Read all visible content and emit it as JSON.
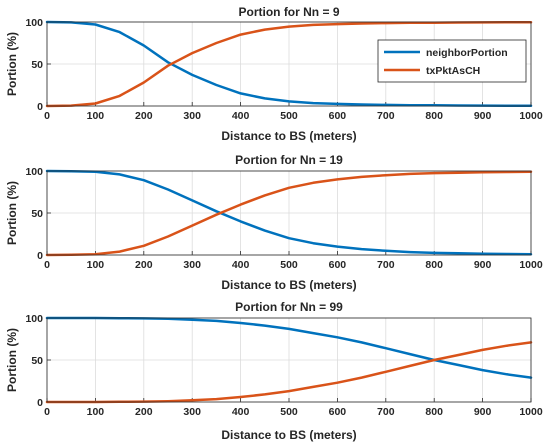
{
  "chart_data": [
    {
      "type": "line",
      "title": "Portion for Nn = 9",
      "xlabel": "Distance to BS (meters)",
      "ylabel": "Portion (%)",
      "xlim": [
        0,
        1000
      ],
      "ylim": [
        0,
        100
      ],
      "xticks": [
        "0",
        "100",
        "200",
        "300",
        "400",
        "500",
        "600",
        "700",
        "800",
        "900",
        "1000"
      ],
      "yticks": [
        "0",
        "50",
        "100"
      ],
      "grid": true,
      "legend": "top-right",
      "x": [
        0,
        50,
        100,
        150,
        200,
        250,
        300,
        350,
        400,
        450,
        500,
        550,
        600,
        650,
        700,
        750,
        800,
        850,
        900,
        950,
        1000
      ],
      "series": [
        {
          "name": "neighborPortion",
          "color": "#0072BD",
          "values": [
            100,
            99.5,
            97,
            88,
            72,
            52,
            37,
            25,
            15,
            9,
            5.5,
            3.5,
            2.5,
            1.8,
            1.3,
            1,
            0.8,
            0.6,
            0.5,
            0.4,
            0.3
          ]
        },
        {
          "name": "txPktAsCH",
          "color": "#D95319",
          "values": [
            0,
            0.5,
            3,
            12,
            28,
            48,
            63,
            75,
            85,
            91,
            94.5,
            96.5,
            97.5,
            98.2,
            98.7,
            99,
            99.2,
            99.4,
            99.5,
            99.6,
            99.7
          ]
        }
      ]
    },
    {
      "type": "line",
      "title": "Portion for Nn = 19",
      "xlabel": "Distance to BS (meters)",
      "ylabel": "Portion (%)",
      "xlim": [
        0,
        1000
      ],
      "ylim": [
        0,
        100
      ],
      "xticks": [
        "0",
        "100",
        "200",
        "300",
        "400",
        "500",
        "600",
        "700",
        "800",
        "900",
        "1000"
      ],
      "yticks": [
        "0",
        "50",
        "100"
      ],
      "grid": true,
      "x": [
        0,
        50,
        100,
        150,
        200,
        250,
        300,
        350,
        400,
        450,
        500,
        550,
        600,
        650,
        700,
        750,
        800,
        850,
        900,
        950,
        1000
      ],
      "series": [
        {
          "name": "neighborPortion",
          "color": "#0072BD",
          "values": [
            100,
            99.8,
            99,
            96,
            89,
            78,
            65,
            52,
            40,
            29,
            20,
            14,
            10,
            7,
            5,
            3.5,
            2.5,
            2,
            1.5,
            1.2,
            1
          ]
        },
        {
          "name": "txPktAsCH",
          "color": "#D95319",
          "values": [
            0,
            0.2,
            1,
            4,
            11,
            22,
            35,
            48,
            60,
            71,
            80,
            86,
            90,
            93,
            95,
            96.5,
            97.5,
            98,
            98.5,
            98.8,
            99
          ]
        }
      ]
    },
    {
      "type": "line",
      "title": "Portion for Nn = 99",
      "xlabel": "Distance to BS (meters)",
      "ylabel": "Portion (%)",
      "xlim": [
        0,
        1000
      ],
      "ylim": [
        0,
        100
      ],
      "xticks": [
        "0",
        "100",
        "200",
        "300",
        "400",
        "500",
        "600",
        "700",
        "800",
        "900",
        "1000"
      ],
      "yticks": [
        "0",
        "50",
        "100"
      ],
      "grid": true,
      "x": [
        0,
        50,
        100,
        150,
        200,
        250,
        300,
        350,
        400,
        450,
        500,
        550,
        600,
        650,
        700,
        750,
        800,
        850,
        900,
        950,
        1000
      ],
      "series": [
        {
          "name": "neighborPortion",
          "color": "#0072BD",
          "values": [
            100,
            100,
            100,
            99.8,
            99.5,
            99,
            98,
            96.5,
            94,
            91,
            87,
            82,
            77,
            71,
            64,
            57,
            50,
            44,
            38,
            33,
            29
          ]
        },
        {
          "name": "txPktAsCH",
          "color": "#D95319",
          "values": [
            0,
            0,
            0,
            0.2,
            0.5,
            1,
            2,
            3.5,
            6,
            9,
            13,
            18,
            23,
            29,
            36,
            43,
            50,
            56,
            62,
            67,
            71
          ]
        }
      ]
    }
  ]
}
